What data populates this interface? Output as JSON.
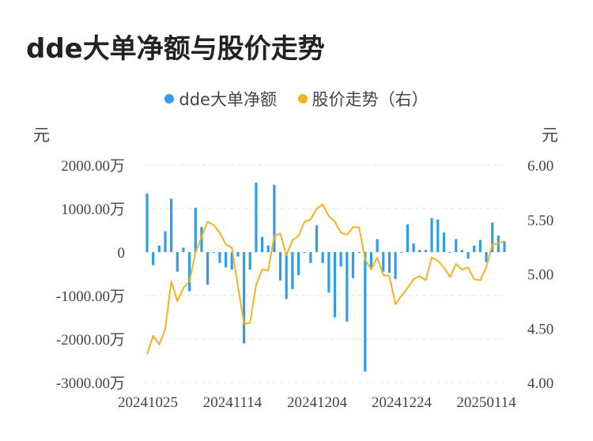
{
  "title": "dde大单净额与股价走势",
  "legend": [
    {
      "label": "dde大单净额",
      "color": "#2f9ee8"
    },
    {
      "label": "股价走势（右）",
      "color": "#f2b31c"
    }
  ],
  "colors": {
    "bar": "#2f9ee8",
    "line": "#f2b31c",
    "grid": "#e6e6e6"
  },
  "chart_data": {
    "type": "bar+line",
    "left_unit": "元",
    "right_unit": "元",
    "left_axis": {
      "min": -3000,
      "max": 2000,
      "ticks": [
        2000,
        1000,
        0,
        -1000,
        -2000,
        -3000
      ],
      "tick_labels": [
        "2000.00万",
        "1000.00万",
        "0",
        "-1000.00万",
        "-2000.00万",
        "-3000.00万"
      ]
    },
    "right_axis": {
      "min": 4.0,
      "max": 6.0,
      "ticks": [
        6.0,
        5.5,
        5.0,
        4.5,
        4.0
      ],
      "tick_labels": [
        "6.00",
        "5.50",
        "5.00",
        "4.50",
        "4.00"
      ]
    },
    "x_tick_labels": [
      "20241025",
      "20241114",
      "20241204",
      "20241224",
      "20250114"
    ],
    "grid": true,
    "series": [
      {
        "name": "dde大单净额",
        "type": "bar",
        "values": [
          1350,
          -300,
          150,
          480,
          1230,
          -450,
          100,
          -900,
          1020,
          580,
          -750,
          0,
          -250,
          -350,
          -400,
          -100,
          -2100,
          -400,
          1600,
          350,
          150,
          1550,
          -650,
          -1080,
          -850,
          -530,
          0,
          -250,
          620,
          -250,
          -930,
          -1500,
          -330,
          -1600,
          -600,
          0,
          -2750,
          -350,
          300,
          -450,
          -480,
          -620,
          0,
          640,
          200,
          50,
          50,
          780,
          750,
          450,
          0,
          300,
          50,
          -150,
          150,
          280,
          -230,
          680,
          380,
          250
        ]
      },
      {
        "name": "股价走势（右）",
        "type": "line",
        "values": [
          4.26,
          4.43,
          4.35,
          4.49,
          4.93,
          4.75,
          4.87,
          4.93,
          5.2,
          5.34,
          5.48,
          5.45,
          5.38,
          5.27,
          5.24,
          4.89,
          4.54,
          4.55,
          4.9,
          5.04,
          5.03,
          5.35,
          5.37,
          5.17,
          5.31,
          5.35,
          5.48,
          5.5,
          5.6,
          5.64,
          5.53,
          5.48,
          5.38,
          5.36,
          5.43,
          5.43,
          5.13,
          5.04,
          5.15,
          4.99,
          4.98,
          4.72,
          4.8,
          4.87,
          4.95,
          4.98,
          4.94,
          5.15,
          5.12,
          5.06,
          4.97,
          5.09,
          5.04,
          5.06,
          4.95,
          4.94,
          5.06,
          5.27,
          5.28,
          5.3
        ]
      }
    ]
  }
}
